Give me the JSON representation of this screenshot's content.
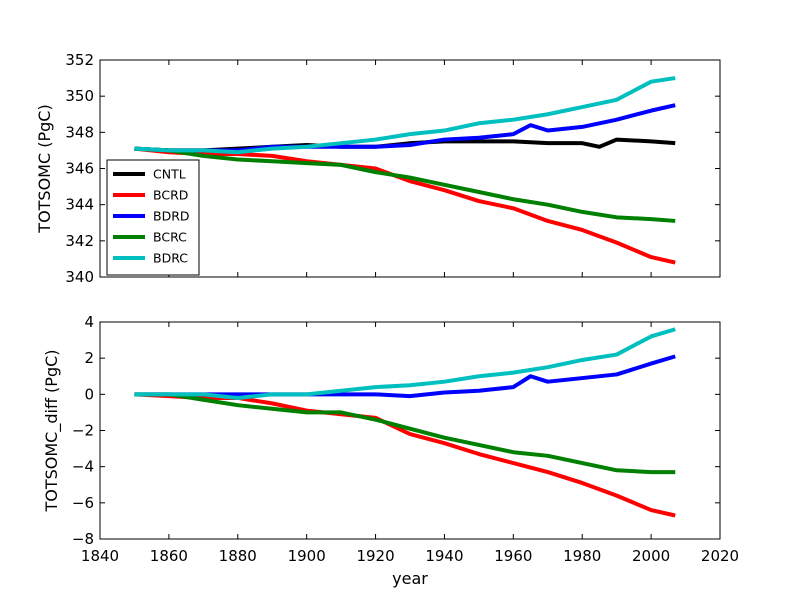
{
  "chart_data": [
    {
      "type": "line",
      "panel": "top",
      "xlabel": "",
      "ylabel": "TOTSOMC (PgC)",
      "xlim": [
        1840,
        2020
      ],
      "ylim": [
        340,
        352
      ],
      "yticks": [
        340,
        342,
        344,
        346,
        348,
        350,
        352
      ],
      "show_xtick_labels": false,
      "legend": "center-left",
      "series": [
        {
          "name": "CNTL",
          "color": "#000000",
          "x": [
            1850,
            1860,
            1870,
            1880,
            1890,
            1900,
            1910,
            1920,
            1930,
            1940,
            1950,
            1960,
            1970,
            1980,
            1985,
            1990,
            2000,
            2007
          ],
          "y": [
            347.1,
            347.0,
            347.0,
            347.1,
            347.2,
            347.3,
            347.2,
            347.2,
            347.4,
            347.5,
            347.5,
            347.5,
            347.4,
            347.4,
            347.2,
            347.6,
            347.5,
            347.4
          ]
        },
        {
          "name": "BCRD",
          "color": "#ff0000",
          "x": [
            1850,
            1860,
            1870,
            1880,
            1890,
            1900,
            1910,
            1920,
            1930,
            1940,
            1950,
            1960,
            1970,
            1980,
            1990,
            2000,
            2007
          ],
          "y": [
            347.1,
            346.9,
            346.8,
            346.8,
            346.7,
            346.4,
            346.2,
            346.0,
            345.3,
            344.8,
            344.2,
            343.8,
            343.1,
            342.6,
            341.9,
            341.1,
            340.8
          ]
        },
        {
          "name": "BDRD",
          "color": "#0000ff",
          "x": [
            1850,
            1860,
            1870,
            1880,
            1890,
            1900,
            1910,
            1920,
            1930,
            1940,
            1950,
            1960,
            1965,
            1970,
            1980,
            1990,
            2000,
            2007
          ],
          "y": [
            347.1,
            347.0,
            347.0,
            347.0,
            347.2,
            347.2,
            347.2,
            347.2,
            347.3,
            347.6,
            347.7,
            347.9,
            348.4,
            348.1,
            348.3,
            348.7,
            349.2,
            349.5
          ]
        },
        {
          "name": "BCRC",
          "color": "#008000",
          "x": [
            1850,
            1860,
            1870,
            1880,
            1890,
            1900,
            1910,
            1920,
            1930,
            1940,
            1950,
            1960,
            1970,
            1980,
            1990,
            2000,
            2007
          ],
          "y": [
            347.1,
            347.0,
            346.7,
            346.5,
            346.4,
            346.3,
            346.2,
            345.8,
            345.5,
            345.1,
            344.7,
            344.3,
            344.0,
            343.6,
            343.3,
            343.2,
            343.1
          ]
        },
        {
          "name": "BDRC",
          "color": "#00bfbf",
          "x": [
            1850,
            1860,
            1870,
            1880,
            1890,
            1900,
            1910,
            1920,
            1930,
            1940,
            1950,
            1960,
            1970,
            1980,
            1990,
            2000,
            2007
          ],
          "y": [
            347.1,
            347.0,
            347.0,
            346.9,
            347.1,
            347.2,
            347.4,
            347.6,
            347.9,
            348.1,
            348.5,
            348.7,
            349.0,
            349.4,
            349.8,
            350.8,
            351.0
          ]
        }
      ]
    },
    {
      "type": "line",
      "panel": "bottom",
      "xlabel": "year",
      "ylabel": "TOTSOMC_diff (PgC)",
      "xlim": [
        1840,
        2020
      ],
      "ylim": [
        -8,
        4
      ],
      "xticks": [
        1840,
        1860,
        1880,
        1900,
        1920,
        1940,
        1960,
        1980,
        2000,
        2020
      ],
      "yticks": [
        -8,
        -6,
        -4,
        -2,
        0,
        2,
        4
      ],
      "series": [
        {
          "name": "BCRD",
          "color": "#ff0000",
          "x": [
            1850,
            1860,
            1870,
            1880,
            1890,
            1900,
            1910,
            1920,
            1930,
            1940,
            1950,
            1960,
            1970,
            1980,
            1990,
            2000,
            2007
          ],
          "y": [
            0.0,
            -0.1,
            -0.2,
            -0.2,
            -0.5,
            -0.9,
            -1.1,
            -1.3,
            -2.2,
            -2.7,
            -3.3,
            -3.8,
            -4.3,
            -4.9,
            -5.6,
            -6.4,
            -6.7
          ]
        },
        {
          "name": "BDRD",
          "color": "#0000ff",
          "x": [
            1850,
            1860,
            1870,
            1880,
            1890,
            1900,
            1910,
            1920,
            1930,
            1940,
            1950,
            1960,
            1965,
            1970,
            1980,
            1990,
            2000,
            2007
          ],
          "y": [
            0.0,
            0.0,
            0.0,
            0.0,
            0.0,
            0.0,
            0.0,
            0.0,
            -0.1,
            0.1,
            0.2,
            0.4,
            1.0,
            0.7,
            0.9,
            1.1,
            1.7,
            2.1
          ]
        },
        {
          "name": "BCRC",
          "color": "#008000",
          "x": [
            1850,
            1860,
            1870,
            1880,
            1890,
            1900,
            1910,
            1920,
            1930,
            1940,
            1950,
            1960,
            1970,
            1980,
            1990,
            2000,
            2007
          ],
          "y": [
            0.0,
            0.0,
            -0.3,
            -0.6,
            -0.8,
            -1.0,
            -1.0,
            -1.4,
            -1.9,
            -2.4,
            -2.8,
            -3.2,
            -3.4,
            -3.8,
            -4.2,
            -4.3,
            -4.3
          ]
        },
        {
          "name": "BDRC",
          "color": "#00bfbf",
          "x": [
            1850,
            1860,
            1870,
            1880,
            1890,
            1900,
            1910,
            1920,
            1930,
            1940,
            1950,
            1960,
            1970,
            1980,
            1990,
            2000,
            2007
          ],
          "y": [
            0.0,
            0.0,
            0.0,
            -0.2,
            0.0,
            0.0,
            0.2,
            0.4,
            0.5,
            0.7,
            1.0,
            1.2,
            1.5,
            1.9,
            2.2,
            3.2,
            3.6
          ]
        }
      ]
    }
  ]
}
